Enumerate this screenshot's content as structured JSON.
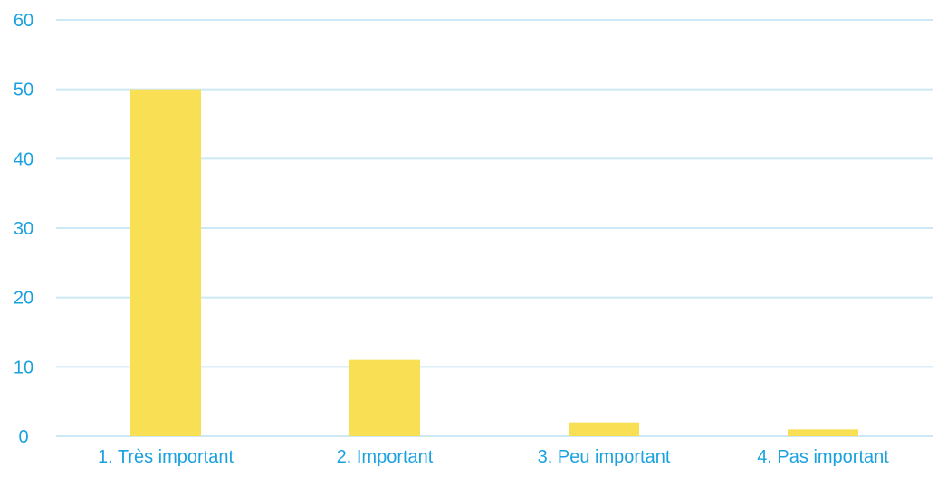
{
  "chart_data": {
    "type": "bar",
    "title": "",
    "xlabel": "",
    "ylabel": "",
    "categories": [
      "1. Très important",
      "2. Important",
      "3. Peu important",
      "4. Pas important"
    ],
    "values": [
      50,
      11,
      2,
      1
    ],
    "ylim": [
      0,
      60
    ],
    "yticks": [
      0,
      10,
      20,
      30,
      40,
      50,
      60
    ],
    "grid": true,
    "legend": "none",
    "colors": {
      "bar": "#f9df53",
      "gridline": "#cce8f4",
      "axis_text": "#1aa1e0"
    }
  }
}
